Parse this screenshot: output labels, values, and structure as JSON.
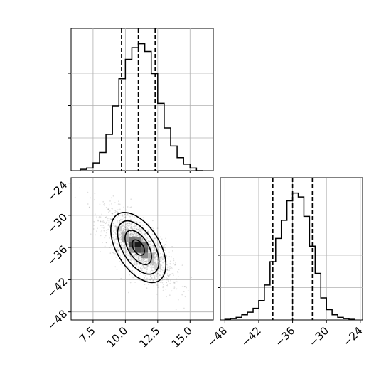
{
  "chart_data": [
    {
      "type": "histogram",
      "panel": "marginal-x",
      "bin_edges": [
        6.5,
        7.0,
        7.5,
        8.0,
        8.5,
        9.0,
        9.5,
        10.0,
        10.5,
        11.0,
        11.5,
        12.0,
        12.5,
        13.0,
        13.5,
        14.0,
        14.5,
        15.0,
        15.5,
        16.0
      ],
      "counts": [
        1,
        2,
        6,
        14,
        28,
        50,
        71,
        86,
        95,
        98,
        92,
        75,
        52,
        33,
        19,
        10,
        5,
        2,
        0
      ],
      "ymax": 100,
      "quantile_lines": [
        9.7,
        11.0,
        12.3
      ],
      "xlim": [
        5.8,
        16.8
      ],
      "grid": true
    },
    {
      "type": "histogram",
      "panel": "marginal-y",
      "bin_edges": [
        -48,
        -47,
        -46,
        -45,
        -44,
        -43,
        -42,
        -41,
        -40,
        -39,
        -38,
        -37,
        -36,
        -35,
        -34,
        -33,
        -32,
        -31,
        -30,
        -29,
        -28,
        -27,
        -26,
        -25
      ],
      "counts": [
        0.5,
        1,
        2,
        4,
        6,
        9,
        15,
        27,
        45,
        63,
        77,
        92,
        98,
        95,
        80,
        57,
        36,
        17,
        8,
        4,
        2,
        1,
        0.5
      ],
      "ymax": 100,
      "quantile_lines": [
        -39.5,
        -36.0,
        -32.5
      ],
      "xlim": [
        -48.8,
        -23.6
      ],
      "x_tick_labels": [
        "−48",
        "−42",
        "−36",
        "−30",
        "−24"
      ],
      "x_ticks": [
        -48,
        -42,
        -36,
        -30,
        -24
      ],
      "grid": true
    },
    {
      "type": "scatter",
      "panel": "joint",
      "x_center": 11.0,
      "y_center": -36.0,
      "correlation": -0.7,
      "density_cells": [
        {
          "x": 10.5,
          "y": -34.5,
          "v": 0.6
        },
        {
          "x": 11.0,
          "y": -35.5,
          "v": 1.0
        },
        {
          "x": 11.5,
          "y": -36.5,
          "v": 0.7
        },
        {
          "x": 10.0,
          "y": -33.5,
          "v": 0.35
        },
        {
          "x": 11.5,
          "y": -37.5,
          "v": 0.5
        },
        {
          "x": 12.0,
          "y": -38.5,
          "v": 0.3
        },
        {
          "x": 10.5,
          "y": -35.5,
          "v": 0.8
        },
        {
          "x": 11.0,
          "y": -34.5,
          "v": 0.55
        },
        {
          "x": 11.5,
          "y": -35.5,
          "v": 0.6
        },
        {
          "x": 9.5,
          "y": -32.5,
          "v": 0.2
        },
        {
          "x": 12.5,
          "y": -39.5,
          "v": 0.2
        },
        {
          "x": 10.5,
          "y": -36.5,
          "v": 0.45
        },
        {
          "x": 11.0,
          "y": -36.5,
          "v": 0.75
        },
        {
          "x": 12.0,
          "y": -37.5,
          "v": 0.35
        },
        {
          "x": 10.0,
          "y": -34.5,
          "v": 0.4
        }
      ],
      "contour_levels": 4,
      "xlim": [
        5.8,
        16.8
      ],
      "ylim": [
        -49.5,
        -23.0
      ],
      "x_ticks": [
        7.5,
        10.0,
        12.5,
        15.0
      ],
      "x_tick_labels": [
        "7.5",
        "10.0",
        "12.5",
        "15.0"
      ],
      "y_ticks": [
        -24,
        -30,
        -36,
        -42,
        -48
      ],
      "y_tick_labels": [
        "−24",
        "−30",
        "−36",
        "−42",
        "−48"
      ],
      "grid": true
    }
  ]
}
